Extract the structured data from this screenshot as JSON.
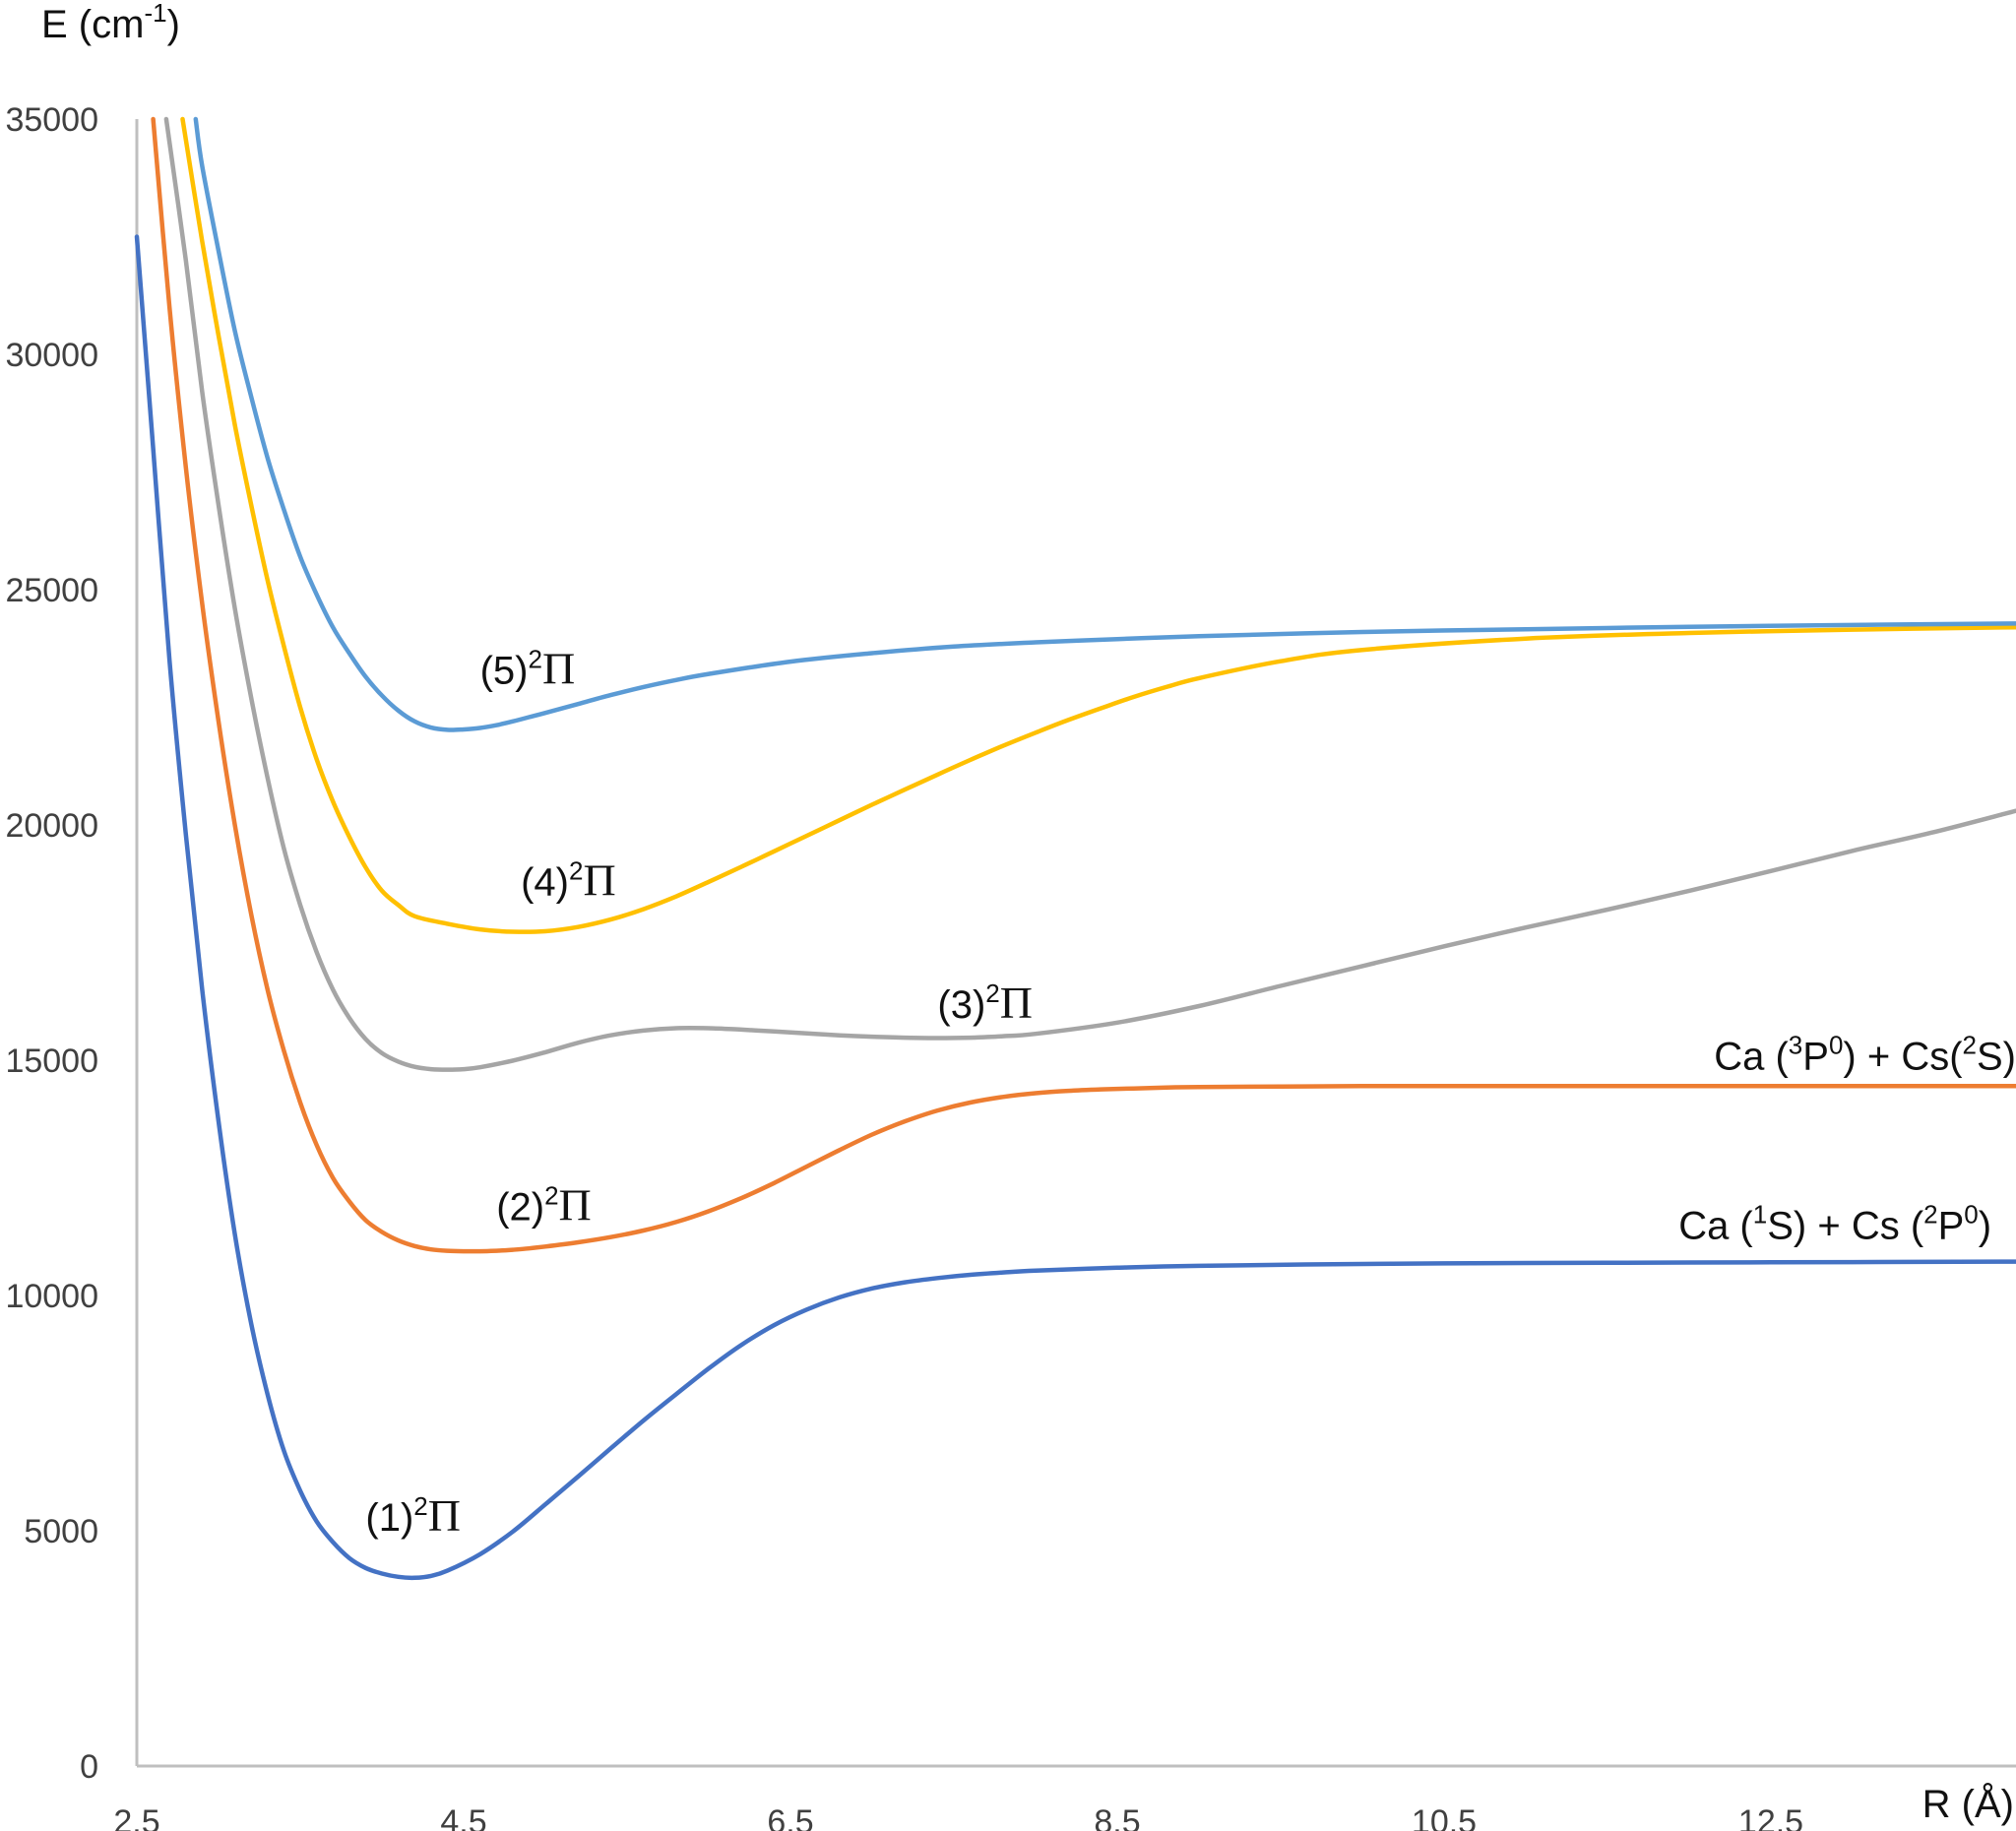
{
  "chart_data": {
    "type": "line",
    "title": "",
    "ylabel": {
      "main": "E (cm",
      "sup": "-1",
      "tail": ")"
    },
    "xlabel": "R (Å)",
    "xlim": [
      2.5,
      14.0
    ],
    "ylim": [
      0,
      35000
    ],
    "x_ticks": [
      2.5,
      4.5,
      6.5,
      8.5,
      10.5,
      12.5
    ],
    "x_tick_labels": [
      "2.5",
      "4.5",
      "6.5",
      "8.5",
      "10.5",
      "12.5"
    ],
    "y_ticks": [
      0,
      5000,
      10000,
      15000,
      20000,
      25000,
      30000,
      35000
    ],
    "y_tick_labels": [
      "0",
      "5000",
      "10000",
      "15000",
      "20000",
      "25000",
      "30000",
      "35000"
    ],
    "grid": false,
    "series": [
      {
        "name": "(1)2Π",
        "label": {
          "pre": "(1)",
          "sup": "2",
          "greek": "Π",
          "x": 3.9,
          "y": 5000
        },
        "color": "#4472c4",
        "x": [
          2.5,
          2.6,
          2.7,
          2.8,
          2.9,
          3.0,
          3.1,
          3.2,
          3.3,
          3.4,
          3.5,
          3.6,
          3.7,
          3.8,
          3.9,
          4.0,
          4.1,
          4.2,
          4.3,
          4.4,
          4.6,
          4.8,
          5.0,
          5.2,
          5.4,
          5.6,
          5.8,
          6.0,
          6.2,
          6.4,
          6.6,
          6.8,
          7.0,
          7.2,
          7.4,
          7.6,
          7.8,
          8.0,
          8.5,
          9.0,
          10.0,
          11.0,
          12.0,
          13.0,
          14.0
        ],
        "y": [
          32500,
          28000,
          23500,
          19800,
          16500,
          13700,
          11300,
          9400,
          7900,
          6700,
          5850,
          5200,
          4760,
          4420,
          4210,
          4090,
          4020,
          4000,
          4040,
          4150,
          4500,
          4980,
          5560,
          6150,
          6750,
          7340,
          7900,
          8450,
          8950,
          9370,
          9700,
          9960,
          10150,
          10280,
          10370,
          10440,
          10490,
          10530,
          10590,
          10630,
          10670,
          10690,
          10700,
          10710,
          10720
        ]
      },
      {
        "name": "(2)2Π",
        "label": {
          "pre": "(2)",
          "sup": "2",
          "greek": "Π",
          "x": 4.7,
          "y": 11600
        },
        "color": "#ed7d31",
        "x": [
          2.6,
          2.7,
          2.8,
          2.9,
          3.0,
          3.1,
          3.2,
          3.3,
          3.4,
          3.5,
          3.6,
          3.7,
          3.8,
          3.9,
          4.0,
          4.1,
          4.2,
          4.3,
          4.4,
          4.5,
          4.6,
          4.7,
          4.8,
          4.9,
          5.0,
          5.2,
          5.4,
          5.6,
          5.8,
          6.0,
          6.2,
          6.4,
          6.6,
          6.8,
          7.0,
          7.2,
          7.4,
          7.6,
          7.8,
          8.0,
          8.2,
          8.4,
          8.6,
          8.8,
          9.0,
          9.5,
          10.0,
          11.0,
          12.0,
          13.0,
          14.0
        ],
        "y": [
          35000,
          31000,
          27600,
          24700,
          22200,
          20000,
          18100,
          16500,
          15200,
          14100,
          13200,
          12500,
          12000,
          11600,
          11350,
          11170,
          11050,
          10980,
          10950,
          10940,
          10940,
          10950,
          10970,
          11000,
          11040,
          11130,
          11240,
          11380,
          11560,
          11790,
          12070,
          12390,
          12740,
          13090,
          13420,
          13700,
          13930,
          14100,
          14220,
          14300,
          14350,
          14380,
          14400,
          14420,
          14430,
          14440,
          14450,
          14450,
          14450,
          14450,
          14450
        ]
      },
      {
        "name": "(3)2Π",
        "label": {
          "pre": "(3)",
          "sup": "2",
          "greek": "Π",
          "x": 7.4,
          "y": 15900
        },
        "color": "#a5a5a5",
        "x": [
          2.68,
          2.8,
          2.9,
          3.0,
          3.1,
          3.2,
          3.3,
          3.4,
          3.5,
          3.6,
          3.7,
          3.8,
          3.9,
          4.0,
          4.1,
          4.2,
          4.3,
          4.4,
          4.5,
          4.6,
          4.8,
          5.0,
          5.2,
          5.4,
          5.6,
          5.8,
          6.0,
          6.2,
          6.4,
          6.6,
          6.8,
          7.0,
          7.2,
          7.4,
          7.6,
          7.8,
          8.0,
          8.5,
          9.0,
          9.5,
          10.0,
          10.5,
          11.0,
          11.5,
          12.0,
          12.5,
          13.0,
          13.5,
          14.0
        ],
        "y": [
          35000,
          32000,
          29200,
          26800,
          24600,
          22700,
          21000,
          19500,
          18300,
          17300,
          16500,
          15900,
          15450,
          15150,
          14970,
          14860,
          14810,
          14800,
          14810,
          14850,
          14990,
          15170,
          15370,
          15530,
          15630,
          15680,
          15680,
          15650,
          15610,
          15570,
          15530,
          15500,
          15480,
          15470,
          15480,
          15510,
          15560,
          15800,
          16150,
          16580,
          17000,
          17420,
          17820,
          18200,
          18600,
          19020,
          19450,
          19850,
          20300
        ]
      },
      {
        "name": "(4)2Π",
        "label": {
          "pre": "(4)",
          "sup": "2",
          "greek": "Π",
          "x": 4.85,
          "y": 18500
        },
        "color": "#ffc000",
        "x": [
          2.78,
          2.9,
          3.0,
          3.1,
          3.2,
          3.3,
          3.4,
          3.5,
          3.6,
          3.7,
          3.8,
          3.9,
          4.0,
          4.1,
          4.2,
          4.4,
          4.6,
          4.8,
          5.0,
          5.2,
          5.4,
          5.6,
          5.8,
          6.0,
          6.2,
          6.4,
          6.6,
          6.8,
          7.0,
          7.2,
          7.4,
          7.6,
          7.8,
          8.0,
          8.2,
          8.4,
          8.6,
          8.8,
          9.0,
          9.5,
          10.0,
          11.0,
          12.0,
          13.0,
          14.0
        ],
        "y": [
          35000,
          32400,
          30400,
          28500,
          26800,
          25200,
          23800,
          22500,
          21400,
          20500,
          19750,
          19100,
          18600,
          18300,
          18060,
          17900,
          17780,
          17730,
          17740,
          17830,
          17990,
          18210,
          18480,
          18790,
          19110,
          19440,
          19770,
          20100,
          20430,
          20750,
          21070,
          21380,
          21680,
          21960,
          22230,
          22480,
          22720,
          22930,
          23120,
          23480,
          23720,
          23960,
          24080,
          24150,
          24200
        ]
      },
      {
        "name": "(5)2Π",
        "label": {
          "pre": "(5)",
          "sup": "2",
          "greek": "Π",
          "x": 4.6,
          "y": 23000
        },
        "color": "#5b9bd5",
        "x": [
          2.86,
          2.9,
          3.0,
          3.1,
          3.2,
          3.3,
          3.4,
          3.5,
          3.6,
          3.7,
          3.8,
          3.9,
          4.0,
          4.1,
          4.2,
          4.3,
          4.4,
          4.5,
          4.6,
          4.7,
          4.8,
          4.9,
          5.0,
          5.2,
          5.4,
          5.6,
          5.8,
          6.0,
          6.5,
          7.0,
          7.5,
          8.0,
          8.5,
          9.0,
          10.0,
          11.0,
          12.0,
          13.0,
          14.0
        ],
        "y": [
          35000,
          34000,
          32200,
          30500,
          29100,
          27800,
          26700,
          25700,
          24900,
          24200,
          23650,
          23150,
          22750,
          22430,
          22200,
          22070,
          22020,
          22030,
          22060,
          22120,
          22200,
          22290,
          22380,
          22570,
          22760,
          22930,
          23080,
          23210,
          23470,
          23650,
          23790,
          23880,
          23950,
          24010,
          24100,
          24160,
          24210,
          24250,
          24280
        ]
      }
    ],
    "asymptote_labels": [
      {
        "text": "Ca (³P⁰) + Cs(²S)",
        "parts": [
          {
            "t": "Ca (",
            "s": false
          },
          {
            "t": "3",
            "s": true
          },
          {
            "t": "P",
            "s": false
          },
          {
            "t": "0",
            "s": true
          },
          {
            "t": ") + Cs(",
            "s": false
          },
          {
            "t": "2",
            "s": true
          },
          {
            "t": "S)",
            "s": false
          }
        ],
        "x_end": 14.0,
        "y": 14800
      },
      {
        "text": "Ca (¹S) + Cs (²P⁰)",
        "parts": [
          {
            "t": "Ca (",
            "s": false
          },
          {
            "t": "1",
            "s": true
          },
          {
            "t": "S) + Cs (",
            "s": false
          },
          {
            "t": "2",
            "s": true
          },
          {
            "t": "P",
            "s": false
          },
          {
            "t": "0",
            "s": true
          },
          {
            "t": ")",
            "s": false
          }
        ],
        "x_end": 13.85,
        "y": 11200
      }
    ]
  }
}
